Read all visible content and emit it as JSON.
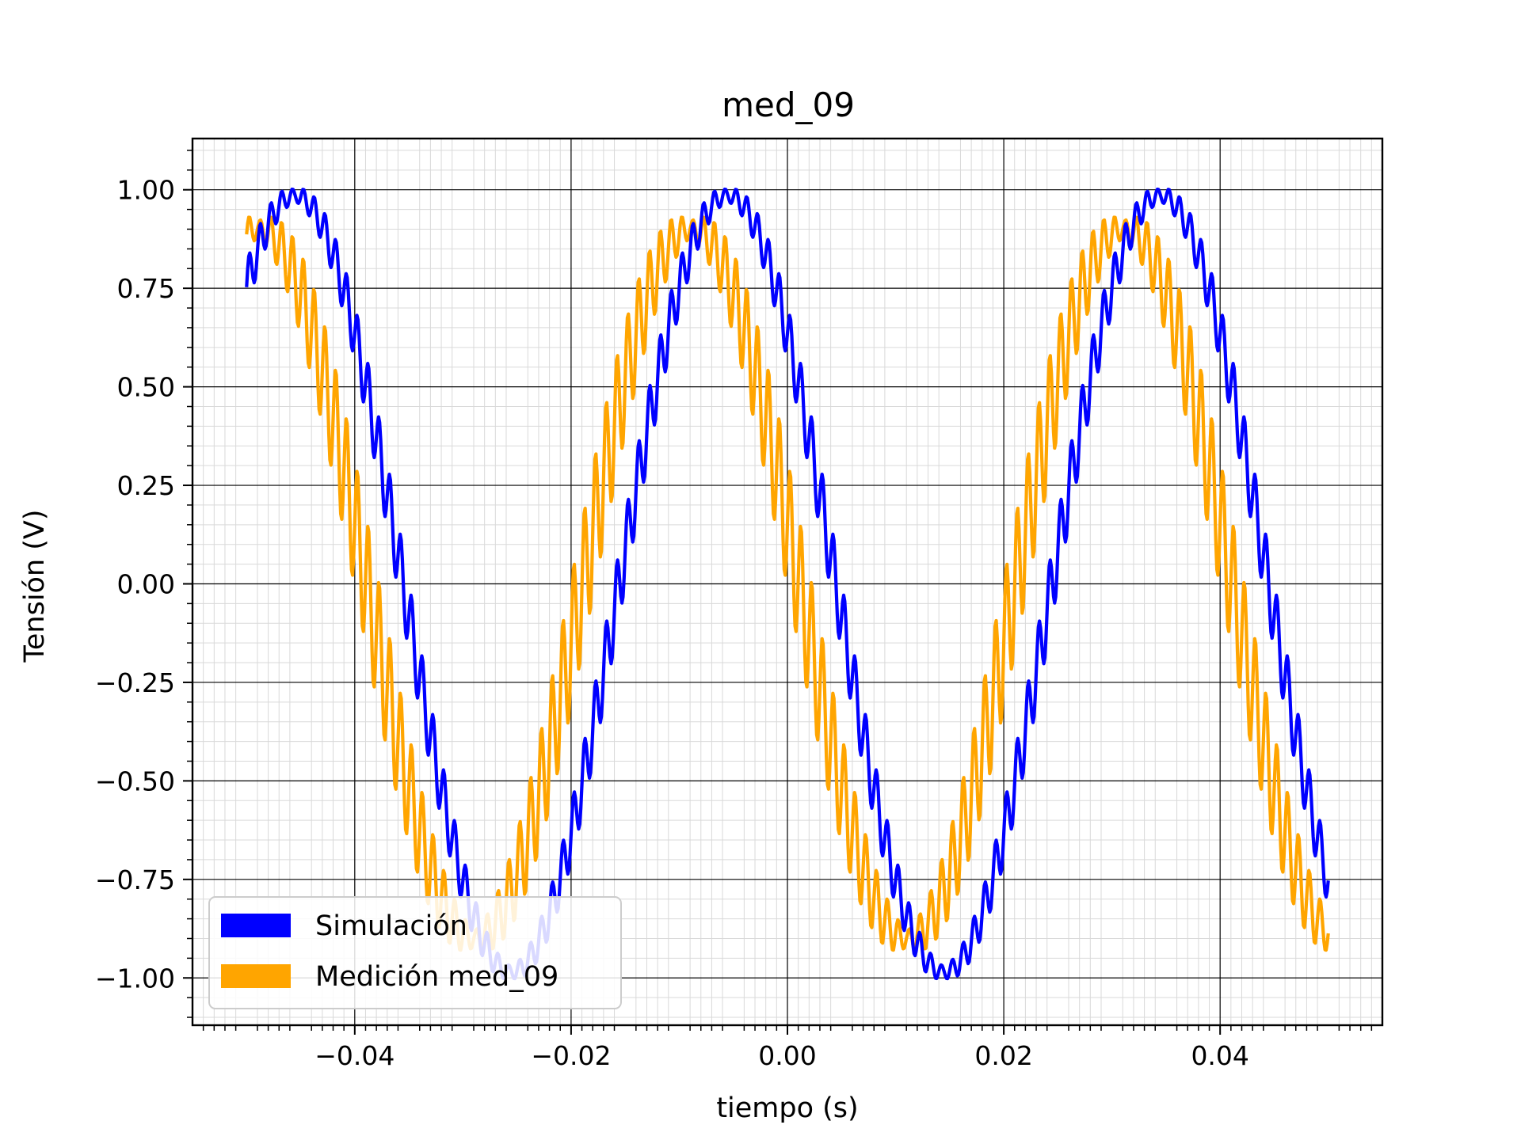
{
  "chart_data": {
    "type": "line",
    "title": "med_09",
    "xlabel": "tiempo (s)",
    "ylabel": "Tensión (V)",
    "xlim": [
      -0.055,
      0.055
    ],
    "ylim": [
      -1.12,
      1.13
    ],
    "grid": "major and minor",
    "legend_position": "lower-left",
    "x_ticks": [
      -0.04,
      -0.02,
      0.0,
      0.02,
      0.04
    ],
    "x_tick_labels": [
      "−0.04",
      "−0.02",
      "0.00",
      "0.02",
      "0.04"
    ],
    "y_ticks": [
      1.0,
      0.75,
      0.5,
      0.25,
      0.0,
      -0.25,
      -0.5,
      -0.75,
      -1.0
    ],
    "y_tick_labels": [
      "1.00",
      "0.75",
      "0.50",
      "0.25",
      "0.00",
      "−0.25",
      "−0.50",
      "−0.75",
      "−1.00"
    ],
    "series": [
      {
        "name": "Simulación",
        "color": "#0000ff",
        "x_start": -0.05,
        "x_end": 0.05,
        "x_step": 0.0001,
        "model": "0.985*sin(2*pi*25*(t+0.05)+0.87) + ripple",
        "ripple_amplitude_range": [
          0.015,
          0.09
        ],
        "ripple_frequency_hz": 1000
      },
      {
        "name": "Medición med_09",
        "color": "#ffa500",
        "x_start": -0.05,
        "x_end": 0.05,
        "x_step": 0.0001,
        "model": "0.9*sin(2*pi*25*(t+0.05)+1.4) + ripple",
        "ripple_amplitude_range": [
          0.02,
          0.17
        ],
        "ripple_frequency_hz": 1000
      }
    ]
  }
}
